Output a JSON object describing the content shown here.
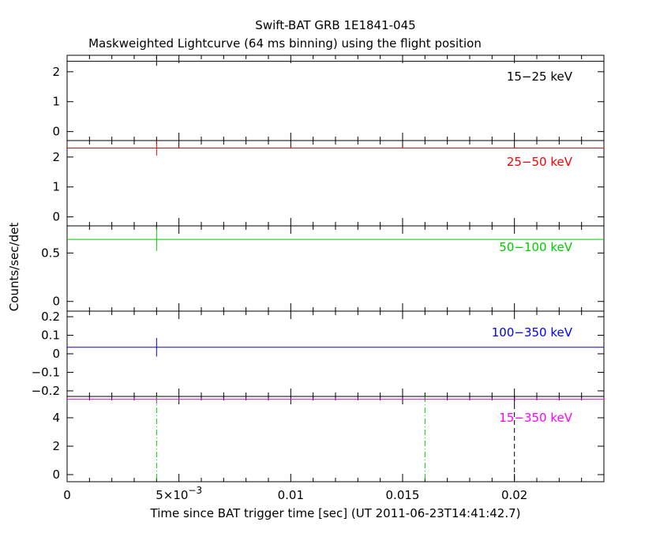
{
  "chart_data": {
    "type": "line",
    "title": "Swift-BAT GRB 1E1841-045",
    "subtitle": "Maskweighted Lightcurve (64 ms binning) using the flight position",
    "xlabel": "Time since BAT trigger time [sec] (UT 2011-06-23T14:41:42.7)",
    "ylabel": "Counts/sec/det",
    "xlim": [
      0,
      0.024
    ],
    "x_ticks": [
      {
        "value": 0,
        "label": "0"
      },
      {
        "value": 0.005,
        "label": "5×10",
        "exp": "−3"
      },
      {
        "value": 0.01,
        "label": "0.01"
      },
      {
        "value": 0.015,
        "label": "0.015"
      },
      {
        "value": 0.02,
        "label": "0.02"
      }
    ],
    "panels": [
      {
        "band": "15−25 keV",
        "color": "#000000",
        "ylim": [
          -0.3,
          2.55
        ],
        "y_ticks": [
          {
            "value": 0,
            "label": "0"
          },
          {
            "value": 1,
            "label": "1"
          },
          {
            "value": 2,
            "label": "2"
          }
        ],
        "series": [
          {
            "x": [
              0,
              0.024
            ],
            "y": [
              2.35,
              2.35
            ]
          }
        ],
        "error_bars": [
          {
            "x": 0.004,
            "low": 2.2,
            "high": 2.5
          }
        ]
      },
      {
        "band": "25−50 keV",
        "color": "#ff0000",
        "ylim": [
          -0.3,
          2.55
        ],
        "y_ticks": [
          {
            "value": 0,
            "label": "0"
          },
          {
            "value": 1,
            "label": "1"
          },
          {
            "value": 2,
            "label": "2"
          }
        ],
        "series": [
          {
            "x": [
              0,
              0.024
            ],
            "y": [
              2.3,
              2.3
            ]
          }
        ],
        "error_bars": [
          {
            "x": 0.004,
            "low": 2.05,
            "high": 2.55
          }
        ]
      },
      {
        "band": "50−100 keV",
        "color": "#00cc00",
        "ylim": [
          -0.1,
          0.78
        ],
        "y_ticks": [
          {
            "value": 0,
            "label": "0"
          },
          {
            "value": 0.5,
            "label": "0.5"
          }
        ],
        "series": [
          {
            "x": [
              0,
              0.024
            ],
            "y": [
              0.64,
              0.64
            ]
          }
        ],
        "error_bars": [
          {
            "x": 0.004,
            "low": 0.52,
            "high": 0.76
          }
        ]
      },
      {
        "band": "100−350 keV",
        "color": "#0000ff",
        "ylim": [
          -0.23,
          0.23
        ],
        "y_ticks": [
          {
            "value": -0.2,
            "label": "−0.2"
          },
          {
            "value": -0.1,
            "label": "−0.1"
          },
          {
            "value": 0,
            "label": "0"
          },
          {
            "value": 0.1,
            "label": "0.1"
          },
          {
            "value": 0.2,
            "label": "0.2"
          }
        ],
        "series": [
          {
            "x": [
              0,
              0.024
            ],
            "y": [
              0.035,
              0.035
            ]
          }
        ],
        "error_bars": [
          {
            "x": 0.004,
            "low": -0.015,
            "high": 0.085
          }
        ]
      },
      {
        "band": "15−350 keV",
        "color": "#ff00ff",
        "ylim": [
          -0.5,
          5.5
        ],
        "y_ticks": [
          {
            "value": 0,
            "label": "0"
          },
          {
            "value": 2,
            "label": "2"
          },
          {
            "value": 4,
            "label": "4"
          }
        ],
        "series": [
          {
            "x": [
              0,
              0.024
            ],
            "y": [
              5.3,
              5.3
            ]
          }
        ],
        "error_bars": [
          {
            "x": 0.004,
            "low": 5.0,
            "high": 5.6
          }
        ]
      }
    ],
    "markers": [
      {
        "x": 0.004,
        "color": "#00cc00",
        "style": "dash-dot"
      },
      {
        "x": 0.016,
        "color": "#00cc00",
        "style": "dash-dot"
      },
      {
        "x": 0.02,
        "color": "#000000",
        "style": "dashed"
      }
    ]
  }
}
